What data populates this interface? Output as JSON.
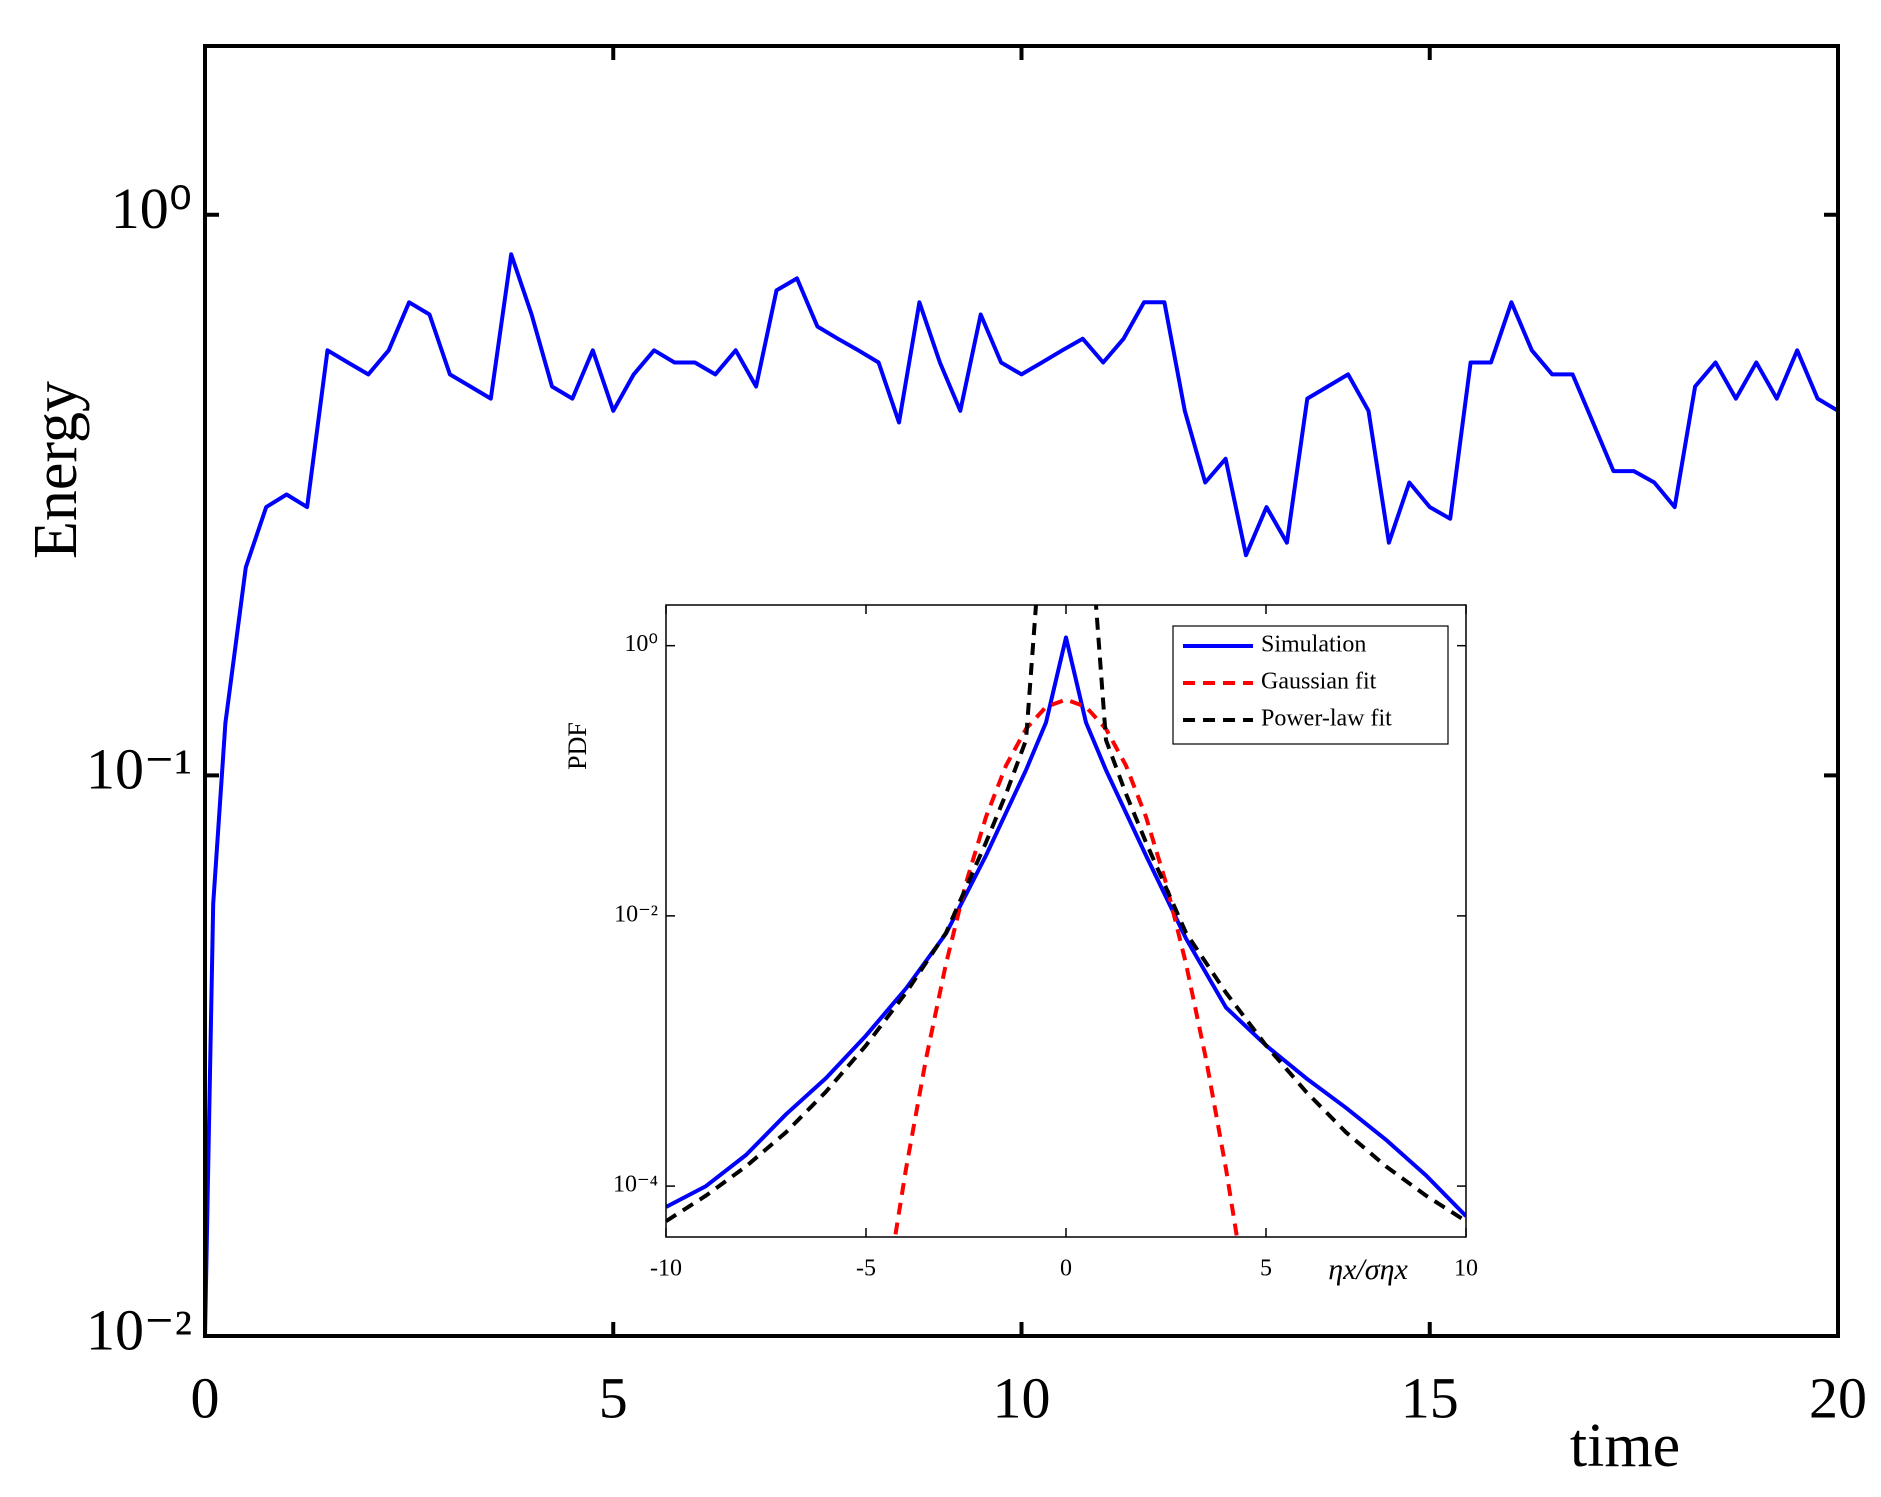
{
  "chart_data": [
    {
      "type": "line",
      "xlabel": "time",
      "ylabel": "Energy",
      "ylog": true,
      "xlim": [
        0,
        20
      ],
      "ylim": [
        0.01,
        2
      ],
      "xticks": [
        0,
        5,
        10,
        15,
        20
      ],
      "yticks": [
        {
          "value": 0.01,
          "label": "10⁻²"
        },
        {
          "value": 0.1,
          "label": "10⁻¹"
        },
        {
          "value": 1,
          "label": "10⁰"
        }
      ],
      "series": [
        {
          "color": "#0000ff",
          "linestyle": "solid",
          "x": [
            0,
            0.1,
            0.25,
            0.5,
            0.75,
            1,
            1.25,
            1.5,
            1.75,
            2,
            2.25,
            2.5,
            2.75,
            3,
            3.25,
            3.5,
            3.75,
            4,
            4.25,
            4.5,
            4.75,
            5,
            5.25,
            5.5,
            5.75,
            6,
            6.25,
            6.5,
            6.75,
            7,
            7.25,
            7.5,
            7.75,
            8,
            8.25,
            8.5,
            8.75,
            9,
            9.25,
            9.5,
            9.75,
            10,
            10.25,
            10.5,
            10.75,
            11,
            11.25,
            11.5,
            11.75,
            12,
            12.25,
            12.5,
            12.75,
            13,
            13.25,
            13.5,
            13.75,
            14,
            14.25,
            14.5,
            14.75,
            15,
            15.25,
            15.5,
            15.75,
            16,
            16.25,
            16.5,
            16.75,
            17,
            17.25,
            17.5,
            17.75,
            18,
            18.25,
            18.5,
            18.75,
            19,
            19.25,
            19.5,
            19.75,
            20
          ],
          "values": [
            0.01,
            0.059,
            0.124,
            0.235,
            0.301,
            0.317,
            0.301,
            0.573,
            0.545,
            0.519,
            0.573,
            0.698,
            0.664,
            0.519,
            0.494,
            0.47,
            0.85,
            0.664,
            0.494,
            0.47,
            0.573,
            0.447,
            0.519,
            0.573,
            0.545,
            0.545,
            0.519,
            0.573,
            0.494,
            0.733,
            0.77,
            0.632,
            0.601,
            0.573,
            0.545,
            0.426,
            0.698,
            0.545,
            0.447,
            0.664,
            0.545,
            0.519,
            0.545,
            0.573,
            0.601,
            0.545,
            0.601,
            0.698,
            0.698,
            0.447,
            0.333,
            0.367,
            0.247,
            0.301,
            0.26,
            0.47,
            0.494,
            0.519,
            0.447,
            0.26,
            0.333,
            0.301,
            0.287,
            0.545,
            0.545,
            0.698,
            0.573,
            0.519,
            0.519,
            0.426,
            0.349,
            0.349,
            0.333,
            0.301,
            0.494,
            0.545,
            0.47,
            0.545,
            0.47,
            0.573,
            0.47,
            0.447
          ]
        }
      ]
    },
    {
      "type": "line",
      "xlabel": "ηx/σηx",
      "ylabel": "PDF",
      "ylog": true,
      "legend": "upper right",
      "xlim": [
        -10,
        10
      ],
      "ylim": [
        4.2e-05,
        2
      ],
      "xticks": [
        -10,
        -5,
        0,
        5,
        10
      ],
      "yticks": [
        {
          "value": 0.0001,
          "label": "10⁻⁴"
        },
        {
          "value": 0.01,
          "label": "10⁻²"
        },
        {
          "value": 1,
          "label": "10⁰"
        }
      ],
      "series": [
        {
          "name": "Simulation",
          "color": "#0000ff",
          "linestyle": "solid",
          "x": [
            -10,
            -9,
            -8,
            -7,
            -6,
            -5,
            -4,
            -3,
            -2,
            -1,
            -0.5,
            0,
            0.5,
            1,
            2,
            3,
            4,
            5,
            6,
            7,
            8,
            9,
            10
          ],
          "values": [
            7e-05,
            0.0001,
            0.00017,
            0.00034,
            0.00063,
            0.0013,
            0.0029,
            0.0074,
            0.028,
            0.12,
            0.27,
            1.15,
            0.27,
            0.12,
            0.028,
            0.0068,
            0.0021,
            0.0011,
            0.00063,
            0.00038,
            0.00022,
            0.00012,
            6e-05
          ]
        },
        {
          "name": "Gaussian fit",
          "color": "#ff0000",
          "linestyle": "dashed",
          "x": [
            -4.5,
            -4,
            -3.5,
            -3,
            -2.5,
            -2,
            -1.5,
            -1,
            -0.5,
            0,
            0.5,
            1,
            1.5,
            2,
            2.5,
            3,
            3.5,
            4,
            4.5
          ],
          "values": [
            1.6e-05,
            0.000134,
            0.000873,
            0.00443,
            0.0175,
            0.054,
            0.1295,
            0.242,
            0.352,
            0.399,
            0.352,
            0.242,
            0.1295,
            0.054,
            0.0175,
            0.00443,
            0.000873,
            0.000134,
            1.6e-05
          ]
        },
        {
          "name": "Power-law fit",
          "color": "#000000",
          "linestyle": "dashed",
          "x": [
            -10,
            -9,
            -8,
            -7,
            -6,
            -5,
            -4,
            -3,
            -2,
            -1.5,
            -1,
            -0.75,
            -0.6,
            0.6,
            0.75,
            1,
            1.5,
            2,
            3,
            4,
            5,
            6,
            7,
            8,
            9,
            10
          ],
          "values": [
            5.5e-05,
            8.5e-05,
            0.00014,
            0.00025,
            0.0005,
            0.0011,
            0.0027,
            0.0075,
            0.035,
            0.08,
            0.2,
            2,
            3,
            3,
            2,
            0.2,
            0.08,
            0.035,
            0.0075,
            0.0027,
            0.0011,
            0.0005,
            0.00025,
            0.00014,
            8.5e-05,
            5.5e-05
          ]
        }
      ]
    }
  ]
}
